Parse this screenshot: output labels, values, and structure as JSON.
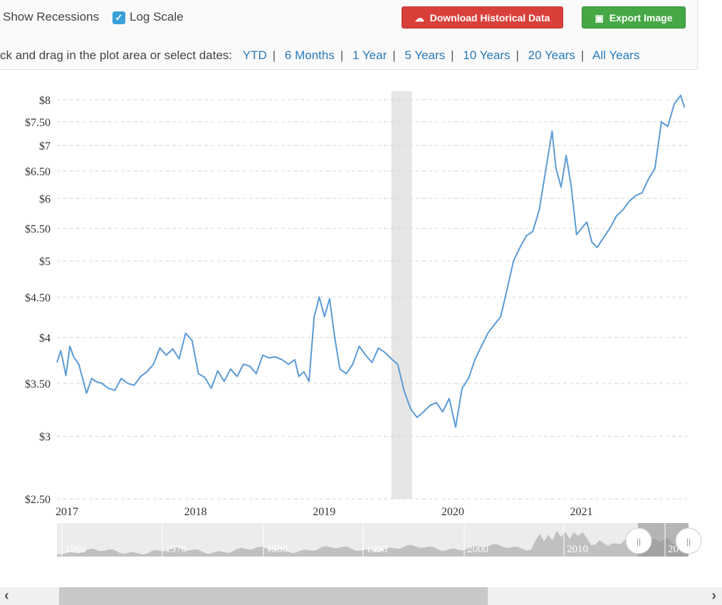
{
  "controls": {
    "show_recessions_label": "Show Recessions",
    "log_scale_label": "Log Scale",
    "log_scale_checked": true,
    "download_label": "Download Historical Data",
    "export_label": "Export Image",
    "range_prompt": "ck and drag in the plot area or select dates:",
    "range_options": [
      "YTD",
      "6 Months",
      "1 Year",
      "5 Years",
      "10 Years",
      "20 Years",
      "All Years"
    ]
  },
  "colors": {
    "line": "#5b9bd5",
    "recession_band": "#e6e6e6",
    "navigator_fill": "#c0c0c0",
    "download_button": "#d9403a",
    "export_button": "#45a845"
  },
  "chart_data": {
    "type": "line",
    "log_scale": true,
    "grid": true,
    "y_ticks": [
      2.5,
      3,
      3.5,
      4,
      4.5,
      5,
      5.5,
      6,
      6.5,
      7,
      7.5,
      8
    ],
    "y_tick_labels": [
      "$2.50",
      "$3",
      "$3.50",
      "$4",
      "$4.50",
      "$5",
      "$5.50",
      "$6",
      "$6.50",
      "$7",
      "$7.50",
      "$8"
    ],
    "ylim": [
      2.5,
      8.2
    ],
    "xlim": [
      2017.0,
      2021.9
    ],
    "x_ticks": [
      2017,
      2018,
      2019,
      2020,
      2021
    ],
    "x_tick_labels": [
      "2017",
      "2018",
      "2019",
      "2020",
      "2021"
    ],
    "recessions": [
      [
        2019.6,
        2019.76
      ]
    ],
    "series": [
      {
        "x": [
          2017.0,
          2017.03,
          2017.07,
          2017.1,
          2017.13,
          2017.17,
          2017.2,
          2017.23,
          2017.27,
          2017.3,
          2017.35,
          2017.4,
          2017.45,
          2017.5,
          2017.55,
          2017.6,
          2017.65,
          2017.7,
          2017.75,
          2017.8,
          2017.85,
          2017.9,
          2017.95,
          2018.0,
          2018.05,
          2018.1,
          2018.15,
          2018.2,
          2018.25,
          2018.3,
          2018.35,
          2018.4,
          2018.45,
          2018.5,
          2018.55,
          2018.6,
          2018.65,
          2018.7,
          2018.75,
          2018.8,
          2018.85,
          2018.88,
          2018.92,
          2018.96,
          2019.0,
          2019.04,
          2019.08,
          2019.12,
          2019.16,
          2019.2,
          2019.25,
          2019.3,
          2019.35,
          2019.4,
          2019.45,
          2019.5,
          2019.55,
          2019.6,
          2019.65,
          2019.7,
          2019.75,
          2019.8,
          2019.85,
          2019.9,
          2019.95,
          2020.0,
          2020.05,
          2020.1,
          2020.15,
          2020.2,
          2020.25,
          2020.3,
          2020.35,
          2020.4,
          2020.45,
          2020.5,
          2020.55,
          2020.6,
          2020.65,
          2020.7,
          2020.75,
          2020.8,
          2020.85,
          2020.88,
          2020.92,
          2020.96,
          2021.0,
          2021.04,
          2021.08,
          2021.12,
          2021.16,
          2021.2,
          2021.25,
          2021.3,
          2021.35,
          2021.4,
          2021.45,
          2021.5,
          2021.55,
          2021.6,
          2021.65,
          2021.7,
          2021.75,
          2021.8,
          2021.85,
          2021.88
        ],
        "y": [
          3.72,
          3.85,
          3.58,
          3.9,
          3.78,
          3.7,
          3.55,
          3.4,
          3.55,
          3.52,
          3.5,
          3.45,
          3.43,
          3.55,
          3.5,
          3.48,
          3.57,
          3.62,
          3.7,
          3.88,
          3.8,
          3.87,
          3.76,
          4.05,
          3.97,
          3.6,
          3.56,
          3.45,
          3.63,
          3.52,
          3.65,
          3.57,
          3.7,
          3.68,
          3.6,
          3.8,
          3.77,
          3.78,
          3.75,
          3.7,
          3.75,
          3.57,
          3.62,
          3.52,
          4.25,
          4.5,
          4.25,
          4.48,
          4.0,
          3.65,
          3.6,
          3.7,
          3.9,
          3.8,
          3.72,
          3.88,
          3.83,
          3.76,
          3.7,
          3.42,
          3.25,
          3.17,
          3.22,
          3.28,
          3.31,
          3.22,
          3.35,
          3.08,
          3.45,
          3.55,
          3.75,
          3.9,
          4.05,
          4.15,
          4.25,
          4.6,
          5.0,
          5.2,
          5.38,
          5.45,
          5.8,
          6.5,
          7.3,
          6.55,
          6.2,
          6.8,
          6.2,
          5.4,
          5.5,
          5.6,
          5.28,
          5.2,
          5.35,
          5.5,
          5.7,
          5.8,
          5.95,
          6.05,
          6.1,
          6.35,
          6.55,
          7.5,
          7.4,
          7.9,
          8.1,
          7.82
        ]
      }
    ],
    "navigator": {
      "labels": [
        "1960",
        "1970",
        "1980",
        "1990",
        "2000",
        "2010",
        "20"
      ],
      "handle_left_label": "||",
      "handle_right_label": "||"
    }
  }
}
